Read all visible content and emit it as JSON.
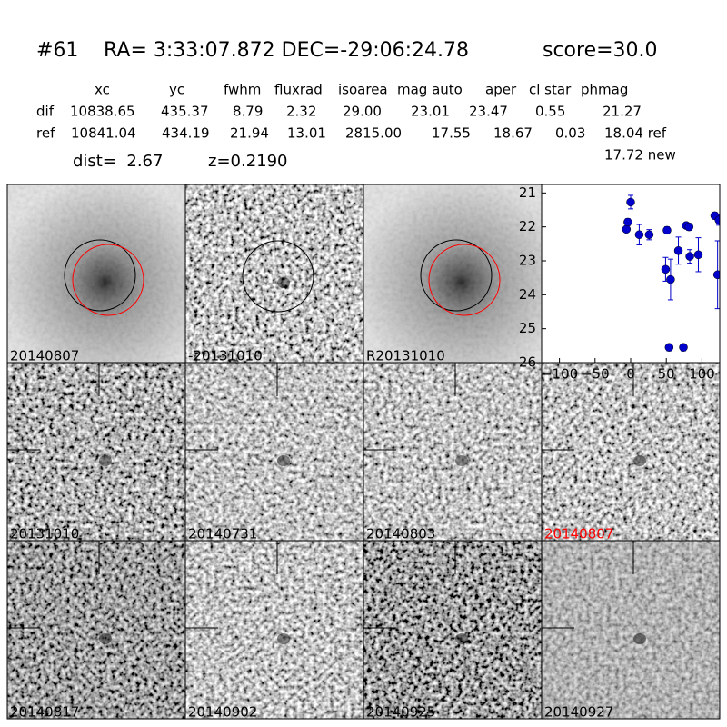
{
  "header": {
    "id": "#61",
    "coords": "RA= 3:33:07.872 DEC=-29:06:24.78",
    "score": "score=30.0"
  },
  "table": {
    "columns": [
      "xc",
      "yc",
      "fwhm",
      "fluxrad",
      "isoarea",
      "mag auto",
      "aper",
      "cl star",
      "phmag"
    ],
    "rows": [
      [
        "dif",
        "10838.65",
        "435.37",
        "8.79",
        "2.32",
        "29.00",
        "23.01",
        "23.47",
        "0.55",
        "21.27"
      ],
      [
        "ref",
        "10841.04",
        "434.19",
        "21.94",
        "13.01",
        "2815.00",
        "17.55",
        "18.67",
        "0.03",
        "18.04 ref"
      ]
    ],
    "extra": "17.72 new"
  },
  "dist": "dist=  2.67",
  "redshift": "z=0.2190",
  "panels": [
    {
      "label": "20140807"
    },
    {
      "label": "-20131010"
    },
    {
      "label": "R20131010"
    },
    {
      "label": "20131010"
    },
    {
      "label": "20140731"
    },
    {
      "label": "20140803"
    },
    {
      "label": "20140807",
      "label_color": "#ff0000"
    },
    {
      "label": "20140817"
    },
    {
      "label": "20140902"
    },
    {
      "label": "20140925"
    },
    {
      "label": "20140927"
    }
  ],
  "chart_data": {
    "type": "scatter",
    "color": "#0000cc",
    "x": [
      -6,
      -4,
      0,
      12,
      26,
      51,
      49,
      56,
      54,
      74,
      67,
      78,
      82,
      83,
      95,
      118,
      122,
      124
    ],
    "values": [
      22.07,
      21.86,
      21.27,
      22.23,
      22.23,
      22.1,
      23.25,
      23.55,
      25.55,
      25.55,
      22.7,
      21.96,
      22.0,
      22.87,
      22.82,
      21.67,
      23.41,
      21.8
    ],
    "errors": [
      0.08,
      0.1,
      0.2,
      0.3,
      0.15,
      0.1,
      0.35,
      0.6,
      0.1,
      0.1,
      0.4,
      0.08,
      0.1,
      0.2,
      0.5,
      0.1,
      1.0,
      0.15
    ],
    "xlim": [
      -125,
      125
    ],
    "ylim": [
      26,
      20.75
    ],
    "xticks": [
      {
        "value": -100,
        "label": "−100"
      },
      {
        "value": -50,
        "label": "−50"
      },
      0,
      50,
      100
    ],
    "yticks": [
      21,
      22,
      23,
      24,
      25,
      26
    ]
  }
}
